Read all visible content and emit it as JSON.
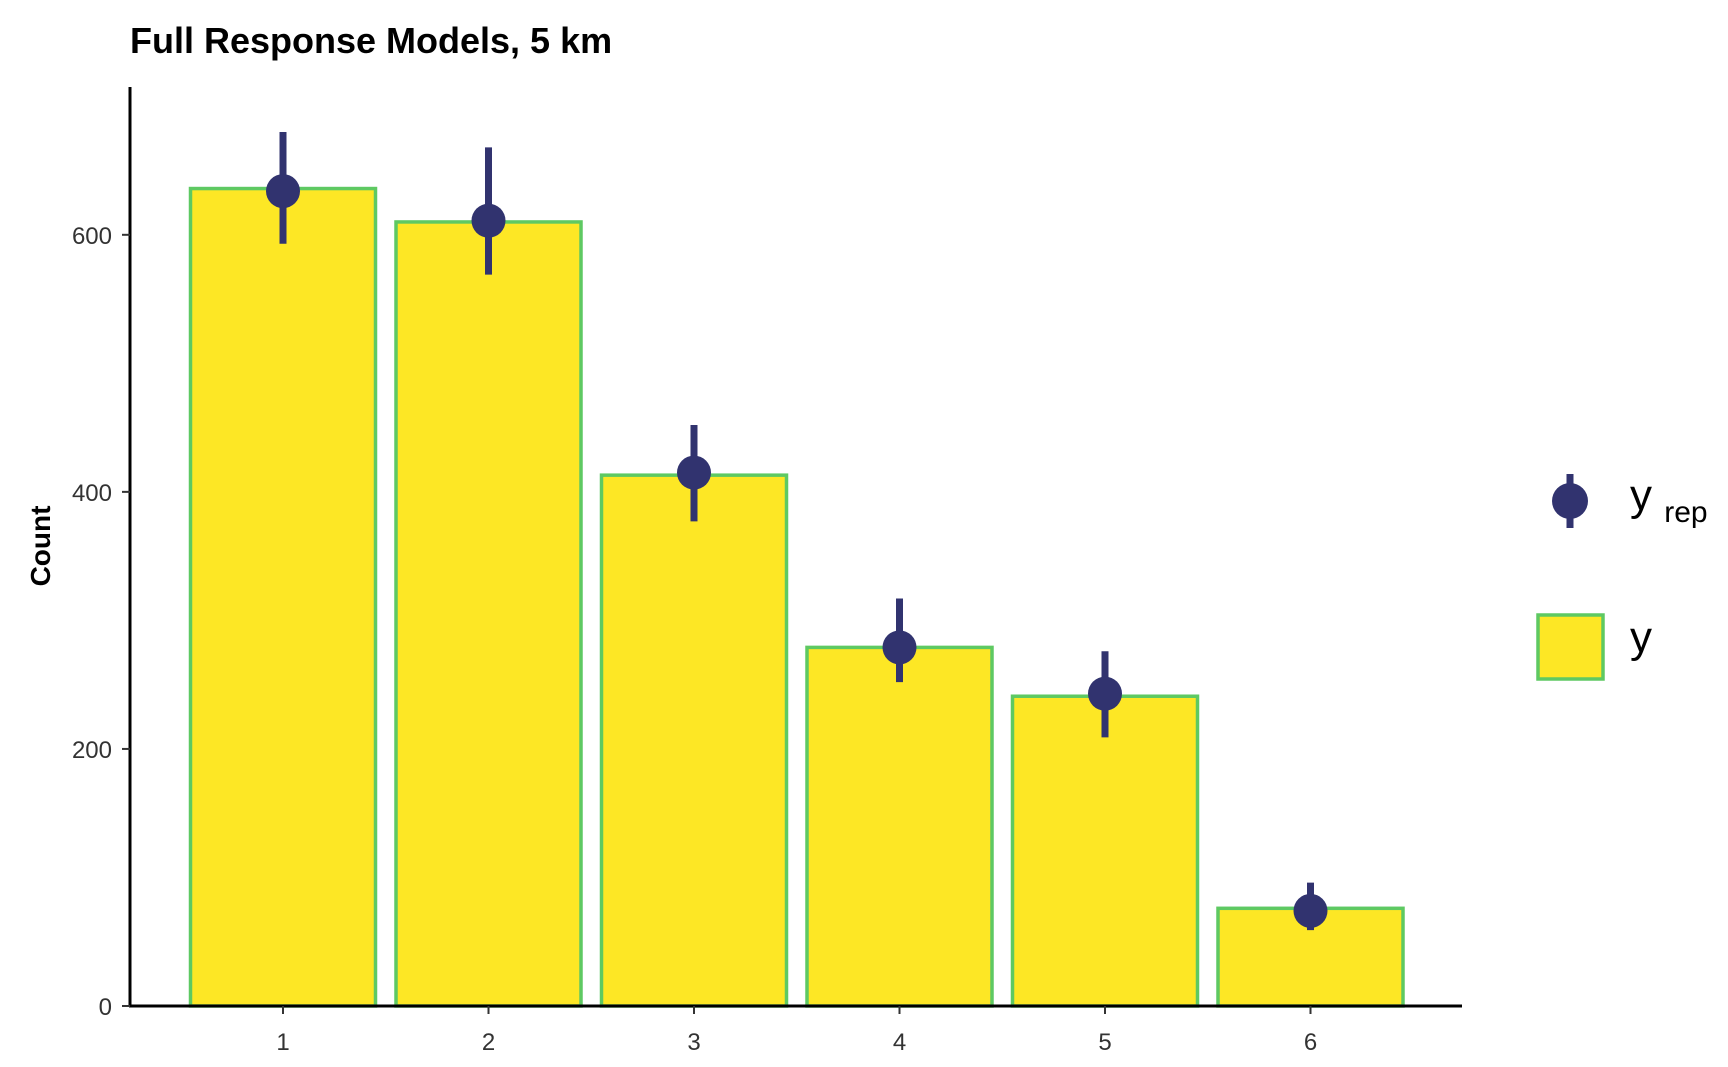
{
  "chart_data": {
    "type": "bar",
    "title": "Full Response Models, 5 km",
    "xlabel": "",
    "ylabel": "Count",
    "categories": [
      "1",
      "2",
      "3",
      "4",
      "5",
      "6"
    ],
    "ylim": [
      0,
      715
    ],
    "yticks": [
      0,
      200,
      400,
      600
    ],
    "grid": false,
    "legend_position": "right",
    "series": [
      {
        "name": "y",
        "type": "bar",
        "values": [
          636,
          610,
          413,
          279,
          241,
          76
        ],
        "fill": "#FDE725",
        "stroke": "#5EC962"
      },
      {
        "name": "y_rep",
        "type": "pointrange",
        "values": [
          634,
          611,
          415,
          279,
          243,
          74
        ],
        "lower": [
          593,
          569,
          377,
          252,
          209,
          59
        ],
        "upper": [
          680,
          668,
          452,
          317,
          276,
          96
        ],
        "color": "#31336F"
      }
    ],
    "legend": [
      {
        "symbol": "pointrange",
        "label_main": "y",
        "label_sub": "rep"
      },
      {
        "symbol": "bar",
        "label_main": "y",
        "label_sub": ""
      }
    ]
  }
}
